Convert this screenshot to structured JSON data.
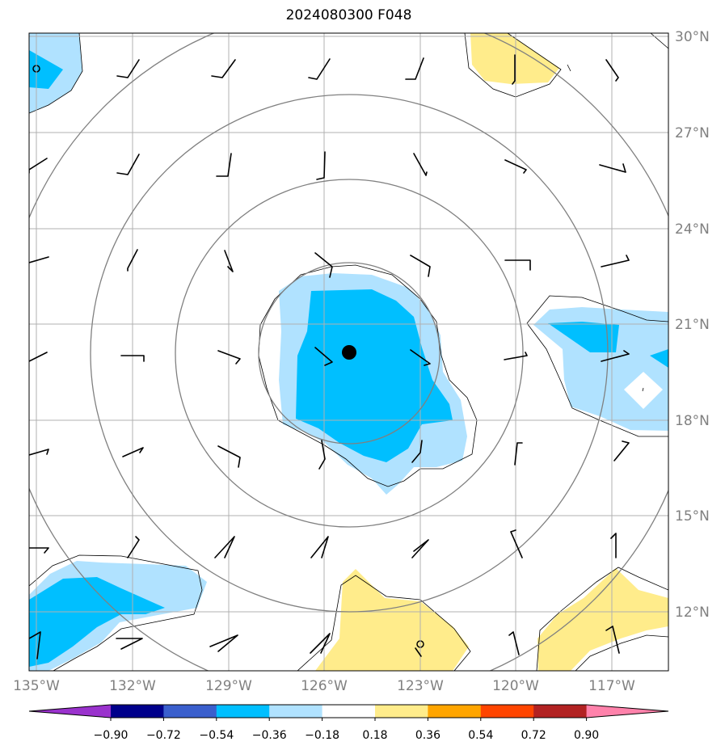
{
  "title": "2024080300 F048",
  "lat_labels": [
    "30°N",
    "27°N",
    "24°N",
    "21°N",
    "18°N",
    "15°N",
    "12°N"
  ],
  "lon_labels": [
    "135°W",
    "132°W",
    "129°W",
    "126°W",
    "123°W",
    "120°W",
    "117°W"
  ],
  "colorbar": {
    "tick_labels": [
      "−0.90",
      "−0.72",
      "−0.54",
      "−0.36",
      "−0.18",
      "0.18",
      "0.36",
      "0.54",
      "0.72",
      "0.90"
    ],
    "colors": [
      "#9a32cd",
      "#00008b",
      "#3a5fcd",
      "#00bfff",
      "#b0e2ff",
      "#ffffff",
      "#ffec8b",
      "#ffa500",
      "#ff4500",
      "#b22222",
      "#ff82ab"
    ]
  },
  "map": {
    "storm_center": {
      "lon": -125.7,
      "lat": 20.4
    },
    "colors": {
      "light_blue": "#b0e2ff",
      "blue": "#00bfff",
      "yellow": "#ffec8b",
      "grid": "#b0b0b0",
      "rings": "#808080"
    }
  }
}
